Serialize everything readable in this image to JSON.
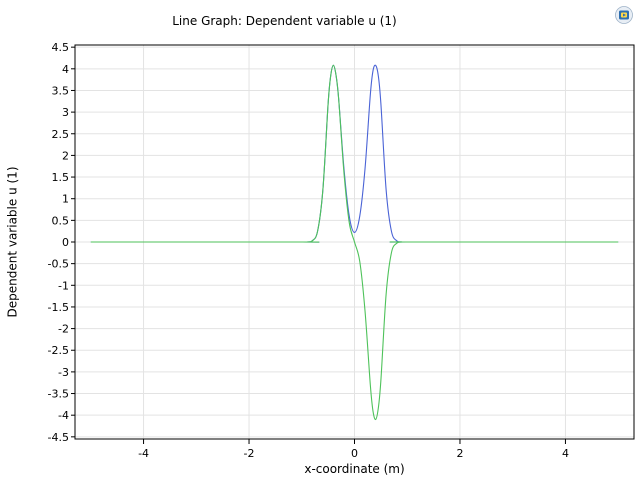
{
  "chart_data": {
    "type": "line",
    "title": "Line Graph: Dependent variable u (1)",
    "xlabel": "x-coordinate (m)",
    "ylabel": "Dependent variable u (1)",
    "xlim": [
      -5.3,
      5.3
    ],
    "ylim": [
      -4.55,
      4.55
    ],
    "x_ticks": [
      -4,
      -2,
      0,
      2,
      4
    ],
    "y_ticks": [
      -4.5,
      -4,
      -3.5,
      -3,
      -2.5,
      -2,
      -1.5,
      -1,
      -0.5,
      0,
      0.5,
      1,
      1.5,
      2,
      2.5,
      3,
      3.5,
      4,
      4.5
    ],
    "grid": true,
    "series": [
      {
        "color": "#4a63d6",
        "x": [
          -5,
          -1,
          -0.9,
          -0.8,
          -0.7,
          -0.6,
          -0.5,
          -0.45,
          -0.4,
          -0.35,
          -0.3,
          -0.2,
          -0.1,
          0,
          0.1,
          0.2,
          0.3,
          0.35,
          0.4,
          0.45,
          0.5,
          0.6,
          0.7,
          0.8,
          0.9,
          1,
          5
        ],
        "values": [
          0,
          0,
          0,
          0.03,
          0.25,
          1.2,
          3.2,
          3.85,
          4.08,
          3.85,
          3.3,
          1.7,
          0.6,
          0.22,
          0.6,
          1.7,
          3.4,
          3.95,
          4.08,
          3.85,
          3.2,
          1.2,
          0.25,
          0.03,
          0,
          0,
          0
        ]
      },
      {
        "color": "#4ec25a",
        "x": [
          -5,
          -1,
          -0.9,
          -0.8,
          -0.7,
          -0.6,
          -0.5,
          -0.45,
          -0.4,
          -0.35,
          -0.3,
          -0.2,
          -0.1,
          0,
          0.1,
          0.2,
          0.3,
          0.35,
          0.4,
          0.45,
          0.5,
          0.6,
          0.7,
          0.8,
          0.9,
          1,
          5
        ],
        "values": [
          0,
          0,
          0,
          0.03,
          0.25,
          1.2,
          3.2,
          3.85,
          4.08,
          3.85,
          3.3,
          1.6,
          0.45,
          0,
          -0.45,
          -1.6,
          -3.3,
          -3.9,
          -4.1,
          -3.85,
          -3.2,
          -1.2,
          -0.25,
          -0.03,
          0,
          0,
          0
        ]
      }
    ]
  },
  "logo_icon": "comsol-logo-icon"
}
